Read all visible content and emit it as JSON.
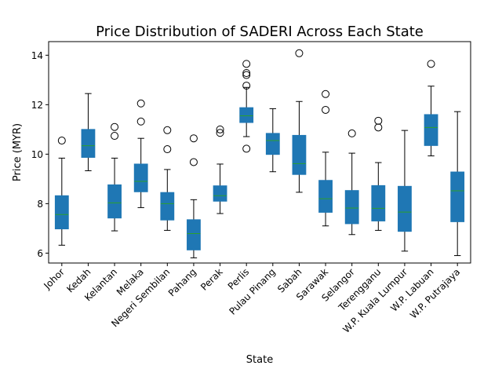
{
  "chart_data": {
    "type": "box",
    "title": "Price Distribution of SADERI Across Each State",
    "xlabel": "State",
    "ylabel": "Price (MYR)",
    "ylim": [
      5.6,
      14.55
    ],
    "yticks": [
      6,
      8,
      10,
      12,
      14
    ],
    "grid": false,
    "colors": {
      "box_fill": "#1f77b4",
      "median": "#2ca02c",
      "line": "#000000"
    },
    "categories": [
      "Johor",
      "Kedah",
      "Kelantan",
      "Melaka",
      "Negeri Sembilan",
      "Pahang",
      "Perak",
      "Perlis",
      "Pulau Pinang",
      "Sabah",
      "Sarawak",
      "Selangor",
      "Terengganu",
      "W.P. Kuala Lumpur",
      "W.P. Labuan",
      "W.P. Putrajaya"
    ],
    "boxes": [
      {
        "whisker_low": 6.32,
        "q1": 6.98,
        "median": 7.56,
        "q3": 8.32,
        "whisker_high": 9.84,
        "outliers": [
          10.55
        ]
      },
      {
        "whisker_low": 9.33,
        "q1": 9.87,
        "median": 10.34,
        "q3": 11.0,
        "whisker_high": 12.45,
        "outliers": []
      },
      {
        "whisker_low": 6.9,
        "q1": 7.42,
        "median": 8.03,
        "q3": 8.76,
        "whisker_high": 9.84,
        "outliers": [
          10.74,
          11.1
        ]
      },
      {
        "whisker_low": 7.84,
        "q1": 8.48,
        "median": 8.9,
        "q3": 9.6,
        "whisker_high": 10.64,
        "outliers": [
          11.32,
          12.05
        ]
      },
      {
        "whisker_low": 6.92,
        "q1": 7.34,
        "median": 8.0,
        "q3": 8.45,
        "whisker_high": 9.38,
        "outliers": [
          10.2,
          10.97
        ]
      },
      {
        "whisker_low": 5.81,
        "q1": 6.13,
        "median": 6.79,
        "q3": 7.35,
        "whisker_high": 8.16,
        "outliers": [
          9.68,
          10.64
        ]
      },
      {
        "whisker_low": 7.6,
        "q1": 8.1,
        "median": 8.32,
        "q3": 8.72,
        "whisker_high": 9.6,
        "outliers": [
          10.86,
          11.0
        ]
      },
      {
        "whisker_low": 10.71,
        "q1": 11.28,
        "median": 11.55,
        "q3": 11.88,
        "whisker_high": 12.7,
        "outliers": [
          10.22,
          12.77,
          13.2,
          13.28,
          13.65
        ]
      },
      {
        "whisker_low": 9.29,
        "q1": 9.99,
        "median": 10.55,
        "q3": 10.84,
        "whisker_high": 11.84,
        "outliers": []
      },
      {
        "whisker_low": 8.46,
        "q1": 9.18,
        "median": 9.62,
        "q3": 10.76,
        "whisker_high": 12.13,
        "outliers": [
          14.08
        ]
      },
      {
        "whisker_low": 7.1,
        "q1": 7.65,
        "median": 8.2,
        "q3": 8.94,
        "whisker_high": 10.08,
        "outliers": [
          11.79,
          12.43
        ]
      },
      {
        "whisker_low": 6.75,
        "q1": 7.19,
        "median": 7.82,
        "q3": 8.53,
        "whisker_high": 10.04,
        "outliers": [
          10.84
        ]
      },
      {
        "whisker_low": 6.92,
        "q1": 7.3,
        "median": 7.81,
        "q3": 8.73,
        "whisker_high": 9.66,
        "outliers": [
          11.08,
          11.35
        ]
      },
      {
        "whisker_low": 6.08,
        "q1": 6.88,
        "median": 7.66,
        "q3": 8.7,
        "whisker_high": 10.96,
        "outliers": []
      },
      {
        "whisker_low": 9.93,
        "q1": 10.35,
        "median": 11.08,
        "q3": 11.6,
        "whisker_high": 12.75,
        "outliers": [
          13.65
        ]
      },
      {
        "whisker_low": 5.9,
        "q1": 7.27,
        "median": 8.52,
        "q3": 9.28,
        "whisker_high": 11.72,
        "outliers": []
      }
    ]
  }
}
